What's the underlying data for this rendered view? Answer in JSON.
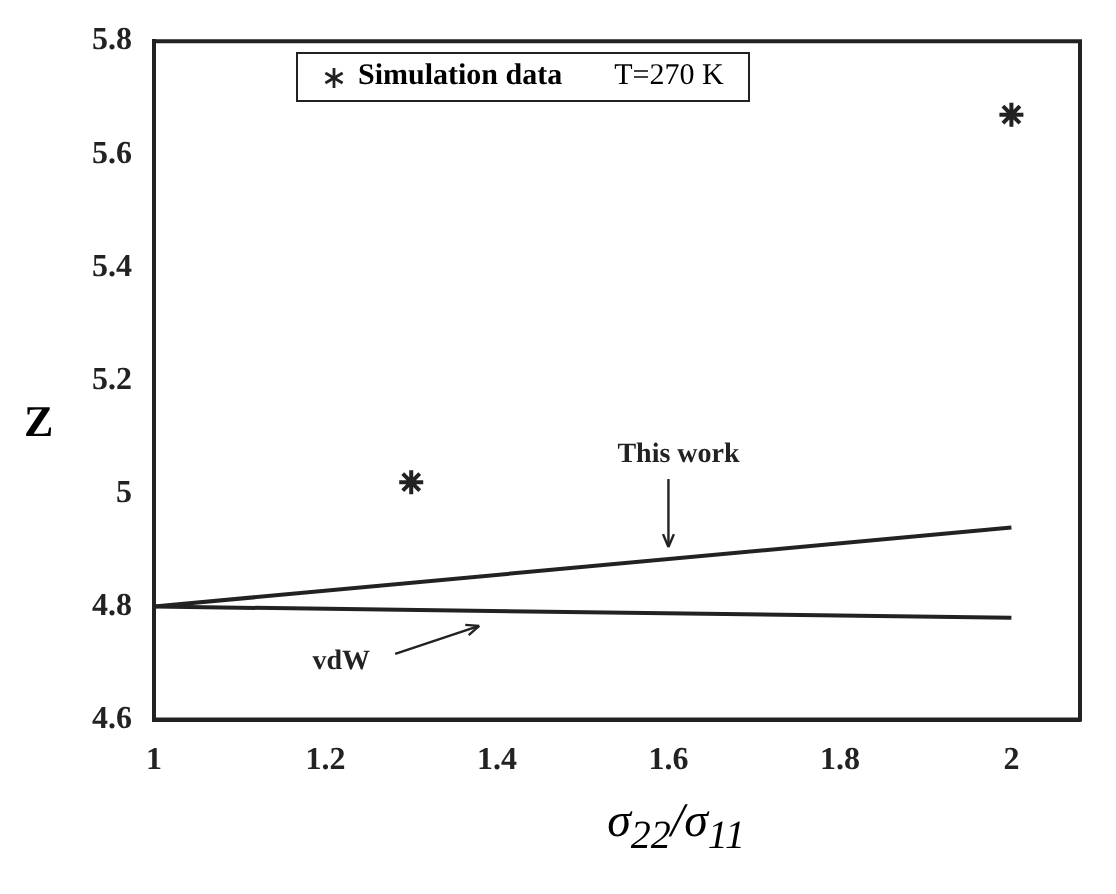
{
  "chart_data": {
    "type": "line",
    "xlabel": "σ$_{22}$/σ$_{11}$",
    "ylabel": "Z",
    "xlim": [
      1,
      2.08
    ],
    "xticks": [
      1,
      1.2,
      1.4,
      1.6,
      1.8,
      2
    ],
    "ylim": [
      4.6,
      5.8
    ],
    "yticks": [
      4.6,
      4.8,
      5,
      5.2,
      5.4,
      5.6,
      5.8
    ],
    "grid": false,
    "legend": "top",
    "annotations": [
      "T=270 K"
    ],
    "series": [
      {
        "type": "scatter",
        "name": "Simulation data",
        "color": "#222222",
        "marker": "cross",
        "x": [
          1.3,
          2
        ],
        "values": [
          5.02,
          5.67
        ]
      },
      {
        "type": "line",
        "name": "This work",
        "color": "#222222",
        "marker": "none",
        "line_style": "solid",
        "x": [
          1,
          2
        ],
        "values": [
          4.8,
          4.94
        ]
      },
      {
        "type": "line",
        "name": "vdW",
        "color": "#222222",
        "marker": "none",
        "line_style": "solid",
        "x": [
          1,
          2
        ],
        "values": [
          4.8,
          4.78
        ]
      }
    ]
  }
}
